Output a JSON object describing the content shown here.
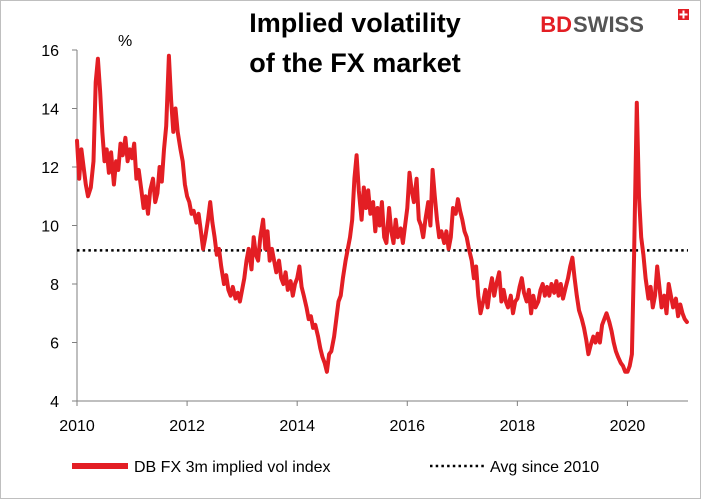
{
  "brand": {
    "part1": "BD",
    "part2": "SWISS",
    "color": "#e31e24"
  },
  "chart_data": {
    "type": "line",
    "title": "Implied volatility of the FX market",
    "title_lines": [
      "Implied volatility",
      "of the FX market"
    ],
    "unit_label": "%",
    "xlabel": "",
    "ylabel": "",
    "xlim": [
      2010,
      2021.1
    ],
    "ylim": [
      4,
      16
    ],
    "x_ticks": [
      2010,
      2012,
      2014,
      2016,
      2018,
      2020
    ],
    "y_ticks": [
      4,
      6,
      8,
      10,
      12,
      14,
      16
    ],
    "grid": false,
    "legend_position": "bottom",
    "series": [
      {
        "name": "DB FX 3m implied vol index",
        "color": "#e31e24",
        "style": "solid",
        "points": [
          [
            2010.0,
            12.9
          ],
          [
            2010.04,
            11.6
          ],
          [
            2010.08,
            12.6
          ],
          [
            2010.12,
            12.0
          ],
          [
            2010.16,
            11.4
          ],
          [
            2010.2,
            11.0
          ],
          [
            2010.25,
            11.3
          ],
          [
            2010.3,
            12.2
          ],
          [
            2010.34,
            14.9
          ],
          [
            2010.38,
            15.7
          ],
          [
            2010.42,
            14.6
          ],
          [
            2010.46,
            13.2
          ],
          [
            2010.5,
            12.2
          ],
          [
            2010.54,
            12.6
          ],
          [
            2010.58,
            11.8
          ],
          [
            2010.62,
            12.5
          ],
          [
            2010.67,
            11.4
          ],
          [
            2010.71,
            12.2
          ],
          [
            2010.75,
            11.9
          ],
          [
            2010.79,
            12.8
          ],
          [
            2010.83,
            12.4
          ],
          [
            2010.88,
            13.0
          ],
          [
            2010.92,
            12.2
          ],
          [
            2010.96,
            12.6
          ],
          [
            2011.0,
            12.3
          ],
          [
            2011.04,
            12.8
          ],
          [
            2011.08,
            11.6
          ],
          [
            2011.12,
            11.9
          ],
          [
            2011.17,
            11.2
          ],
          [
            2011.21,
            10.6
          ],
          [
            2011.25,
            11.0
          ],
          [
            2011.29,
            10.4
          ],
          [
            2011.33,
            11.2
          ],
          [
            2011.38,
            11.6
          ],
          [
            2011.42,
            10.8
          ],
          [
            2011.46,
            11.1
          ],
          [
            2011.5,
            12.0
          ],
          [
            2011.54,
            11.5
          ],
          [
            2011.58,
            12.6
          ],
          [
            2011.62,
            13.4
          ],
          [
            2011.67,
            15.8
          ],
          [
            2011.71,
            14.3
          ],
          [
            2011.75,
            13.2
          ],
          [
            2011.79,
            14.0
          ],
          [
            2011.83,
            13.2
          ],
          [
            2011.88,
            12.6
          ],
          [
            2011.92,
            12.2
          ],
          [
            2011.96,
            11.4
          ],
          [
            2012.0,
            11.0
          ],
          [
            2012.04,
            10.8
          ],
          [
            2012.08,
            10.4
          ],
          [
            2012.12,
            10.5
          ],
          [
            2012.17,
            10.1
          ],
          [
            2012.21,
            10.4
          ],
          [
            2012.25,
            9.8
          ],
          [
            2012.29,
            9.2
          ],
          [
            2012.33,
            9.6
          ],
          [
            2012.38,
            10.2
          ],
          [
            2012.42,
            10.8
          ],
          [
            2012.46,
            10.1
          ],
          [
            2012.5,
            9.6
          ],
          [
            2012.54,
            9.0
          ],
          [
            2012.58,
            9.2
          ],
          [
            2012.62,
            8.6
          ],
          [
            2012.67,
            8.0
          ],
          [
            2012.71,
            8.3
          ],
          [
            2012.75,
            7.8
          ],
          [
            2012.79,
            7.6
          ],
          [
            2012.83,
            7.9
          ],
          [
            2012.88,
            7.5
          ],
          [
            2012.92,
            7.7
          ],
          [
            2012.96,
            7.4
          ],
          [
            2013.0,
            7.8
          ],
          [
            2013.04,
            8.2
          ],
          [
            2013.08,
            8.8
          ],
          [
            2013.12,
            9.2
          ],
          [
            2013.17,
            8.5
          ],
          [
            2013.21,
            9.6
          ],
          [
            2013.25,
            9.0
          ],
          [
            2013.29,
            8.8
          ],
          [
            2013.33,
            9.6
          ],
          [
            2013.38,
            10.2
          ],
          [
            2013.42,
            9.2
          ],
          [
            2013.46,
            9.8
          ],
          [
            2013.5,
            8.8
          ],
          [
            2013.54,
            9.2
          ],
          [
            2013.58,
            8.8
          ],
          [
            2013.62,
            8.4
          ],
          [
            2013.67,
            8.8
          ],
          [
            2013.71,
            8.2
          ],
          [
            2013.75,
            8.0
          ],
          [
            2013.79,
            8.4
          ],
          [
            2013.83,
            7.8
          ],
          [
            2013.88,
            8.1
          ],
          [
            2013.92,
            7.6
          ],
          [
            2013.96,
            8.0
          ],
          [
            2014.0,
            8.2
          ],
          [
            2014.04,
            8.6
          ],
          [
            2014.08,
            7.9
          ],
          [
            2014.12,
            7.6
          ],
          [
            2014.17,
            7.2
          ],
          [
            2014.21,
            6.8
          ],
          [
            2014.25,
            6.9
          ],
          [
            2014.29,
            6.5
          ],
          [
            2014.33,
            6.6
          ],
          [
            2014.38,
            6.2
          ],
          [
            2014.42,
            5.8
          ],
          [
            2014.46,
            5.5
          ],
          [
            2014.5,
            5.3
          ],
          [
            2014.54,
            5.0
          ],
          [
            2014.58,
            5.6
          ],
          [
            2014.62,
            5.7
          ],
          [
            2014.67,
            6.2
          ],
          [
            2014.71,
            6.8
          ],
          [
            2014.75,
            7.4
          ],
          [
            2014.79,
            7.6
          ],
          [
            2014.83,
            8.2
          ],
          [
            2014.88,
            8.8
          ],
          [
            2014.92,
            9.2
          ],
          [
            2014.96,
            9.6
          ],
          [
            2015.0,
            10.2
          ],
          [
            2015.04,
            11.6
          ],
          [
            2015.08,
            12.4
          ],
          [
            2015.12,
            11.2
          ],
          [
            2015.17,
            10.2
          ],
          [
            2015.21,
            11.3
          ],
          [
            2015.25,
            10.6
          ],
          [
            2015.29,
            11.2
          ],
          [
            2015.33,
            10.4
          ],
          [
            2015.38,
            10.8
          ],
          [
            2015.42,
            9.8
          ],
          [
            2015.46,
            10.6
          ],
          [
            2015.5,
            10.0
          ],
          [
            2015.54,
            10.8
          ],
          [
            2015.58,
            9.6
          ],
          [
            2015.62,
            9.4
          ],
          [
            2015.67,
            10.6
          ],
          [
            2015.71,
            9.8
          ],
          [
            2015.75,
            9.4
          ],
          [
            2015.79,
            10.2
          ],
          [
            2015.83,
            9.6
          ],
          [
            2015.88,
            9.9
          ],
          [
            2015.92,
            9.4
          ],
          [
            2015.96,
            10.0
          ],
          [
            2016.0,
            10.6
          ],
          [
            2016.04,
            11.8
          ],
          [
            2016.08,
            11.2
          ],
          [
            2016.12,
            10.8
          ],
          [
            2016.17,
            11.6
          ],
          [
            2016.21,
            10.2
          ],
          [
            2016.25,
            10.0
          ],
          [
            2016.29,
            9.6
          ],
          [
            2016.33,
            10.2
          ],
          [
            2016.38,
            10.8
          ],
          [
            2016.42,
            10.0
          ],
          [
            2016.46,
            11.9
          ],
          [
            2016.5,
            11.0
          ],
          [
            2016.54,
            10.2
          ],
          [
            2016.58,
            9.6
          ],
          [
            2016.62,
            9.8
          ],
          [
            2016.67,
            9.4
          ],
          [
            2016.71,
            9.8
          ],
          [
            2016.75,
            9.2
          ],
          [
            2016.79,
            9.6
          ],
          [
            2016.83,
            10.6
          ],
          [
            2016.88,
            10.4
          ],
          [
            2016.92,
            10.9
          ],
          [
            2016.96,
            10.5
          ],
          [
            2017.0,
            10.2
          ],
          [
            2017.04,
            9.8
          ],
          [
            2017.08,
            9.6
          ],
          [
            2017.12,
            9.2
          ],
          [
            2017.17,
            8.8
          ],
          [
            2017.21,
            8.2
          ],
          [
            2017.25,
            8.6
          ],
          [
            2017.29,
            7.6
          ],
          [
            2017.33,
            7.0
          ],
          [
            2017.38,
            7.4
          ],
          [
            2017.42,
            7.8
          ],
          [
            2017.46,
            7.2
          ],
          [
            2017.5,
            7.8
          ],
          [
            2017.54,
            8.2
          ],
          [
            2017.58,
            7.6
          ],
          [
            2017.62,
            8.0
          ],
          [
            2017.67,
            8.4
          ],
          [
            2017.71,
            7.4
          ],
          [
            2017.75,
            7.8
          ],
          [
            2017.79,
            7.4
          ],
          [
            2017.83,
            7.2
          ],
          [
            2017.88,
            7.6
          ],
          [
            2017.92,
            7.0
          ],
          [
            2017.96,
            7.4
          ],
          [
            2018.0,
            7.5
          ],
          [
            2018.04,
            7.9
          ],
          [
            2018.08,
            8.2
          ],
          [
            2018.12,
            7.7
          ],
          [
            2018.17,
            7.4
          ],
          [
            2018.21,
            7.8
          ],
          [
            2018.25,
            7.0
          ],
          [
            2018.29,
            7.6
          ],
          [
            2018.33,
            7.2
          ],
          [
            2018.38,
            7.4
          ],
          [
            2018.42,
            7.8
          ],
          [
            2018.46,
            8.0
          ],
          [
            2018.5,
            7.6
          ],
          [
            2018.54,
            7.9
          ],
          [
            2018.58,
            7.6
          ],
          [
            2018.62,
            8.0
          ],
          [
            2018.67,
            7.7
          ],
          [
            2018.71,
            8.1
          ],
          [
            2018.75,
            7.6
          ],
          [
            2018.79,
            8.0
          ],
          [
            2018.83,
            7.5
          ],
          [
            2018.88,
            7.9
          ],
          [
            2018.92,
            8.2
          ],
          [
            2018.96,
            8.6
          ],
          [
            2019.0,
            8.9
          ],
          [
            2019.04,
            8.2
          ],
          [
            2019.08,
            7.6
          ],
          [
            2019.12,
            7.1
          ],
          [
            2019.17,
            6.8
          ],
          [
            2019.21,
            6.5
          ],
          [
            2019.25,
            6.1
          ],
          [
            2019.29,
            5.6
          ],
          [
            2019.33,
            5.9
          ],
          [
            2019.38,
            6.2
          ],
          [
            2019.42,
            6.0
          ],
          [
            2019.46,
            6.3
          ],
          [
            2019.5,
            6.0
          ],
          [
            2019.54,
            6.6
          ],
          [
            2019.58,
            6.8
          ],
          [
            2019.62,
            7.0
          ],
          [
            2019.67,
            6.7
          ],
          [
            2019.71,
            6.4
          ],
          [
            2019.75,
            6.0
          ],
          [
            2019.79,
            5.7
          ],
          [
            2019.83,
            5.5
          ],
          [
            2019.88,
            5.3
          ],
          [
            2019.92,
            5.2
          ],
          [
            2019.96,
            5.0
          ],
          [
            2020.0,
            5.0
          ],
          [
            2020.04,
            5.2
          ],
          [
            2020.08,
            5.6
          ],
          [
            2020.12,
            9.0
          ],
          [
            2020.17,
            14.2
          ],
          [
            2020.21,
            11.0
          ],
          [
            2020.25,
            9.6
          ],
          [
            2020.29,
            9.0
          ],
          [
            2020.33,
            8.2
          ],
          [
            2020.38,
            7.5
          ],
          [
            2020.42,
            7.9
          ],
          [
            2020.46,
            7.2
          ],
          [
            2020.5,
            7.6
          ],
          [
            2020.54,
            8.6
          ],
          [
            2020.58,
            7.9
          ],
          [
            2020.62,
            7.2
          ],
          [
            2020.67,
            7.6
          ],
          [
            2020.71,
            7.0
          ],
          [
            2020.75,
            8.0
          ],
          [
            2020.79,
            7.6
          ],
          [
            2020.83,
            7.2
          ],
          [
            2020.88,
            7.5
          ],
          [
            2020.92,
            6.9
          ],
          [
            2020.96,
            7.3
          ],
          [
            2021.0,
            7.0
          ],
          [
            2021.04,
            6.8
          ],
          [
            2021.08,
            6.7
          ]
        ]
      },
      {
        "name": "Avg since 2010",
        "color": "#000000",
        "style": "dotted",
        "value": 9.15
      }
    ]
  }
}
